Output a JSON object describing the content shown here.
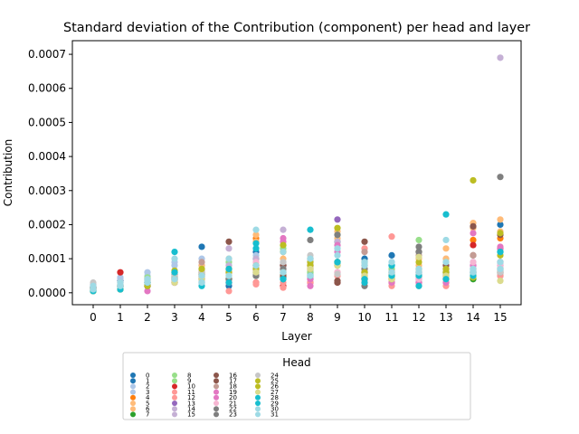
{
  "chart_data": {
    "type": "scatter",
    "title": "Standard deviation of the Contribution (component) per head and layer",
    "xlabel": "Layer",
    "ylabel": "Contribution",
    "x_ticks": [
      "0",
      "1",
      "2",
      "3",
      "4",
      "5",
      "6",
      "7",
      "8",
      "9",
      "10",
      "11",
      "12",
      "13",
      "14",
      "15"
    ],
    "y_ticks": [
      "0.0000",
      "0.0001",
      "0.0002",
      "0.0003",
      "0.0004",
      "0.0005",
      "0.0006",
      "0.0007"
    ],
    "ylim": [
      -3.5e-05,
      0.00074
    ],
    "legend": {
      "title": "Head",
      "placement": "bottom-center"
    },
    "series": [
      {
        "name": "0",
        "color": "#1f77b4",
        "values": [
          1.5e-05,
          3e-05,
          2e-05,
          5.5e-05,
          0.000135,
          2e-05,
          0.00012,
          4.5e-05,
          4e-05,
          0.00015,
          0.0001,
          0.00011,
          3e-05,
          6e-05,
          7e-05,
          0.0002
        ]
      },
      {
        "name": "1",
        "color": "#1f77b4",
        "values": [
          1e-05,
          3.5e-05,
          4e-05,
          4.5e-05,
          5.5e-05,
          3e-05,
          0.0001,
          6e-05,
          5e-05,
          9e-05,
          9e-05,
          8e-05,
          4e-05,
          5e-05,
          6e-05,
          5e-05
        ]
      },
      {
        "name": "2",
        "color": "#aec7e8",
        "values": [
          2e-05,
          4e-05,
          5e-05,
          8e-05,
          8e-05,
          7e-05,
          9e-05,
          7e-05,
          9e-05,
          0.00013,
          6e-05,
          7e-05,
          6e-05,
          7e-05,
          8e-05,
          7e-05
        ]
      },
      {
        "name": "3",
        "color": "#aec7e8",
        "values": [
          2.5e-05,
          4.5e-05,
          6e-05,
          9e-05,
          0.0001,
          9e-05,
          0.00011,
          9e-05,
          0.0001,
          0.00015,
          7e-05,
          9e-05,
          7e-05,
          0.0001,
          9e-05,
          8e-05
        ]
      },
      {
        "name": "4",
        "color": "#ff7f0e",
        "values": [
          1e-05,
          2e-05,
          3e-05,
          5e-05,
          6e-05,
          7e-05,
          0.00016,
          8e-05,
          7e-05,
          9e-05,
          6e-05,
          5e-05,
          6e-05,
          7e-05,
          0.000155,
          0.00016
        ]
      },
      {
        "name": "5",
        "color": "#ffbb78",
        "values": [
          2e-05,
          3e-05,
          4e-05,
          6e-05,
          8e-05,
          0.0001,
          0.00017,
          0.0001,
          8e-05,
          0.00018,
          8e-05,
          6e-05,
          0.0001,
          0.00013,
          0.000205,
          0.000215
        ]
      },
      {
        "name": "6",
        "color": "#ffbb78",
        "values": [
          1e-05,
          2e-05,
          3e-05,
          4e-05,
          5e-05,
          6e-05,
          0.00015,
          0.00012,
          0.0001,
          0.00016,
          7e-05,
          5e-05,
          8e-05,
          0.0001,
          0.00019,
          0.00018
        ]
      },
      {
        "name": "7",
        "color": "#2ca02c",
        "values": [
          5e-06,
          1e-05,
          2e-05,
          3e-05,
          4e-05,
          4e-05,
          5e-05,
          5e-05,
          6e-05,
          9e-05,
          4e-05,
          4e-05,
          5e-05,
          5e-05,
          4e-05,
          6e-05
        ]
      },
      {
        "name": "8",
        "color": "#98df8a",
        "values": [
          1e-05,
          2e-05,
          3e-05,
          6e-05,
          7e-05,
          9e-05,
          0.0001,
          0.00013,
          0.0001,
          0.00015,
          9e-05,
          7e-05,
          0.00012,
          9e-05,
          7e-05,
          9e-05
        ]
      },
      {
        "name": "9",
        "color": "#98df8a",
        "values": [
          1.5e-05,
          2e-05,
          4.5e-05,
          4e-05,
          6e-05,
          4e-05,
          5e-05,
          0.00014,
          6e-05,
          0.00017,
          6e-05,
          5e-05,
          0.000155,
          6e-05,
          6e-05,
          7e-05
        ]
      },
      {
        "name": "10",
        "color": "#d62728",
        "values": [
          1e-05,
          6e-05,
          2e-05,
          3e-05,
          4e-05,
          3e-05,
          3e-05,
          2e-05,
          3e-05,
          3e-05,
          4e-05,
          3e-05,
          3e-05,
          4e-05,
          0.00014,
          0.00013
        ]
      },
      {
        "name": "11",
        "color": "#ff9896",
        "values": [
          5e-06,
          1e-05,
          2e-05,
          3e-05,
          3e-05,
          5e-06,
          2.5e-05,
          1.5e-05,
          3e-05,
          5e-05,
          3e-05,
          0.000165,
          2e-05,
          2e-05,
          5e-05,
          5e-05
        ]
      },
      {
        "name": "12",
        "color": "#ff9896",
        "values": [
          1e-05,
          2e-05,
          2e-05,
          4e-05,
          4e-05,
          3e-05,
          3e-05,
          3e-05,
          4e-05,
          5e-05,
          0.00013,
          2e-05,
          3e-05,
          3e-05,
          6e-05,
          5e-05
        ]
      },
      {
        "name": "13",
        "color": "#9467bd",
        "values": [
          1e-05,
          2e-05,
          3e-05,
          4e-05,
          5e-05,
          5e-05,
          8e-05,
          8e-05,
          8e-05,
          0.000215,
          6e-05,
          5e-05,
          6e-05,
          5e-05,
          7e-05,
          9e-05
        ]
      },
      {
        "name": "14",
        "color": "#c5b0d5",
        "values": [
          2e-05,
          3e-05,
          4e-05,
          6e-05,
          7e-05,
          8e-05,
          0.0001,
          0.000185,
          9e-05,
          0.00015,
          8e-05,
          6e-05,
          7e-05,
          6e-05,
          7e-05,
          8e-05
        ]
      },
      {
        "name": "15",
        "color": "#c5b0d5",
        "values": [
          1.5e-05,
          2e-05,
          3e-05,
          4e-05,
          5e-05,
          0.00013,
          7e-05,
          8e-05,
          0.0001,
          0.00014,
          5e-05,
          5e-05,
          6e-05,
          5e-05,
          7e-05,
          0.00069
        ]
      },
      {
        "name": "16",
        "color": "#8c564b",
        "values": [
          1e-05,
          2e-05,
          3e-05,
          5e-05,
          6e-05,
          0.00015,
          7e-05,
          8e-05,
          7e-05,
          3.5e-05,
          0.00015,
          6e-05,
          0.00012,
          8e-05,
          0.000195,
          0.00017
        ]
      },
      {
        "name": "17",
        "color": "#8c564b",
        "values": [
          1e-05,
          2e-05,
          2e-05,
          4e-05,
          5e-05,
          4e-05,
          5e-05,
          5e-05,
          5e-05,
          3e-05,
          4e-05,
          4e-05,
          5e-05,
          4e-05,
          0.00011,
          7e-05
        ]
      },
      {
        "name": "18",
        "color": "#c49c94",
        "values": [
          1.5e-05,
          2e-05,
          4e-05,
          5e-05,
          9e-05,
          6e-05,
          6e-05,
          7e-05,
          9e-05,
          6e-05,
          0.00012,
          5e-05,
          0.00011,
          3e-05,
          0.00011,
          6e-05
        ]
      },
      {
        "name": "19",
        "color": "#e377c2",
        "values": [
          1e-05,
          2e-05,
          5e-06,
          3e-05,
          3e-05,
          3e-05,
          7e-05,
          0.00016,
          2e-05,
          0.00012,
          3e-05,
          3e-05,
          3e-05,
          3e-05,
          0.000175,
          0.000135
        ]
      },
      {
        "name": "20",
        "color": "#e377c2",
        "values": [
          1.5e-05,
          2e-05,
          3e-05,
          4e-05,
          5e-05,
          6e-05,
          8e-05,
          0.00015,
          4e-05,
          0.00014,
          5e-05,
          4e-05,
          4e-05,
          4e-05,
          8e-05,
          0.00013
        ]
      },
      {
        "name": "21",
        "color": "#f7b6d2",
        "values": [
          1e-05,
          2e-05,
          3e-05,
          3e-05,
          4e-05,
          5e-05,
          9e-05,
          7e-05,
          5e-05,
          6e-05,
          5e-05,
          4e-05,
          4e-05,
          4e-05,
          9e-05,
          8e-05
        ]
      },
      {
        "name": "22",
        "color": "#7f7f7f",
        "values": [
          1e-05,
          2e-05,
          3e-05,
          4e-05,
          5e-05,
          4e-05,
          6e-05,
          7e-05,
          0.000155,
          8e-05,
          2e-05,
          5e-05,
          0.000135,
          6e-05,
          6e-05,
          0.00034
        ]
      },
      {
        "name": "23",
        "color": "#7f7f7f",
        "values": [
          1.5e-05,
          2e-05,
          2e-05,
          3e-05,
          4e-05,
          4e-05,
          5e-05,
          4e-05,
          5e-05,
          0.00017,
          7e-05,
          4e-05,
          0.00012,
          5e-05,
          5e-05,
          6e-05
        ]
      },
      {
        "name": "24",
        "color": "#c7c7c7",
        "values": [
          3e-05,
          2.5e-05,
          4e-05,
          5e-05,
          6e-05,
          7e-05,
          7e-05,
          9e-05,
          0.00011,
          5.5e-05,
          6e-05,
          5e-05,
          7e-05,
          6e-05,
          7e-05,
          6e-05
        ]
      },
      {
        "name": "25",
        "color": "#bcbd22",
        "values": [
          5e-06,
          1e-05,
          2e-05,
          6.5e-05,
          7e-05,
          7e-05,
          8e-05,
          0.00014,
          9e-05,
          9e-05,
          5e-05,
          4e-05,
          7e-05,
          6e-05,
          4.5e-05,
          0.000175
        ]
      },
      {
        "name": "26",
        "color": "#bcbd22",
        "values": [
          1e-05,
          2e-05,
          3e-05,
          4e-05,
          5e-05,
          6e-05,
          7e-05,
          0.00012,
          8e-05,
          0.00019,
          6e-05,
          5e-05,
          9e-05,
          7e-05,
          0.00033,
          0.00011
        ]
      },
      {
        "name": "27",
        "color": "#dbdb8d",
        "values": [
          1e-05,
          2e-05,
          3e-05,
          3e-05,
          4e-05,
          5e-05,
          6e-05,
          6e-05,
          7e-05,
          8e-05,
          5e-05,
          4e-05,
          0.000105,
          5e-05,
          5e-05,
          3.5e-05
        ]
      },
      {
        "name": "28",
        "color": "#17becf",
        "values": [
          1e-05,
          2e-05,
          3e-05,
          6e-05,
          2e-05,
          7e-05,
          0.000145,
          4e-05,
          0.000185,
          9e-05,
          4e-05,
          5e-05,
          5e-05,
          0.00023,
          5e-05,
          0.00012
        ]
      },
      {
        "name": "29",
        "color": "#17becf",
        "values": [
          5e-06,
          1e-05,
          3e-05,
          0.00012,
          3e-05,
          3e-05,
          0.00013,
          4e-05,
          5e-05,
          9e-05,
          3e-05,
          8e-05,
          2e-05,
          4e-05,
          6e-05,
          0.00012
        ]
      },
      {
        "name": "30",
        "color": "#9edae5",
        "values": [
          2e-05,
          3e-05,
          4e-05,
          0.0001,
          5e-05,
          0.0001,
          0.000185,
          0.00012,
          0.0001,
          0.00011,
          8e-05,
          9e-05,
          7e-05,
          0.000155,
          7e-05,
          9e-05
        ]
      },
      {
        "name": "31",
        "color": "#9edae5",
        "values": [
          1e-05,
          2e-05,
          3e-05,
          4e-05,
          3e-05,
          5e-05,
          8e-05,
          6e-05,
          5e-05,
          0.00013,
          9e-05,
          6e-05,
          6e-05,
          9e-05,
          6e-05,
          7e-05
        ]
      }
    ]
  }
}
